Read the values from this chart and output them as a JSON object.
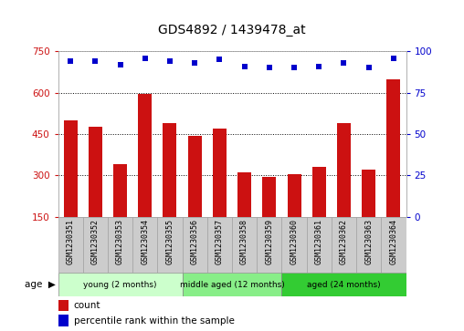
{
  "title": "GDS4892 / 1439478_at",
  "samples": [
    "GSM1230351",
    "GSM1230352",
    "GSM1230353",
    "GSM1230354",
    "GSM1230355",
    "GSM1230356",
    "GSM1230357",
    "GSM1230358",
    "GSM1230359",
    "GSM1230360",
    "GSM1230361",
    "GSM1230362",
    "GSM1230363",
    "GSM1230364"
  ],
  "counts": [
    500,
    475,
    340,
    595,
    490,
    445,
    470,
    310,
    295,
    305,
    330,
    490,
    320,
    650
  ],
  "percentiles": [
    94,
    94,
    92,
    96,
    94,
    93,
    95,
    91,
    90,
    90,
    91,
    93,
    90,
    96
  ],
  "ylim_left": [
    150,
    750
  ],
  "ylim_right": [
    0,
    100
  ],
  "yticks_left": [
    150,
    300,
    450,
    600,
    750
  ],
  "yticks_right": [
    0,
    25,
    50,
    75,
    100
  ],
  "bar_color": "#cc1111",
  "dot_color": "#0000cc",
  "groups": [
    {
      "label": "young (2 months)",
      "start": 0,
      "end": 5,
      "color": "#ccffcc"
    },
    {
      "label": "middle aged (12 months)",
      "start": 5,
      "end": 9,
      "color": "#88ee88"
    },
    {
      "label": "aged (24 months)",
      "start": 9,
      "end": 14,
      "color": "#33cc33"
    }
  ],
  "age_label": "age",
  "legend_count": "count",
  "legend_percentile": "percentile rank within the sample",
  "bar_color_hex": "#cc1111",
  "dot_color_hex": "#0000cc",
  "tick_color_left": "#cc1111",
  "tick_color_right": "#0000cc",
  "label_box_color": "#cccccc",
  "label_box_edge": "#999999"
}
